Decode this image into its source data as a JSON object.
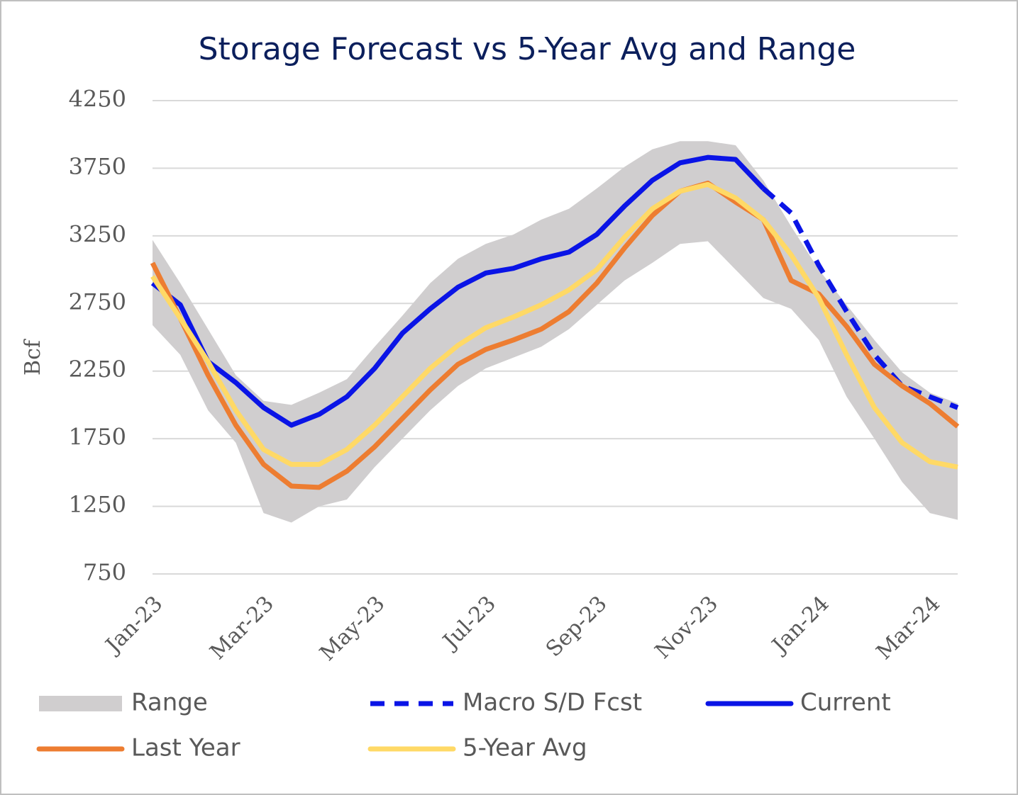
{
  "chart_data": {
    "type": "line",
    "title": "Storage Forecast vs 5-Year Avg and Range",
    "y_label": "Bcf",
    "categories": [
      "Jan-23",
      null,
      null,
      null,
      "Mar-23",
      null,
      null,
      null,
      "May-23",
      null,
      null,
      null,
      "Jul-23",
      null,
      null,
      null,
      "Sep-23",
      null,
      null,
      null,
      "Nov-23",
      null,
      null,
      null,
      "Jan-24",
      null,
      null,
      null,
      "Mar-24",
      null
    ],
    "ylim": [
      750,
      4250
    ],
    "yticks": [
      750,
      1250,
      1750,
      2250,
      2750,
      3250,
      3750,
      4250
    ],
    "grid": true,
    "range": {
      "name": "Range",
      "color": "#d0cecf",
      "upper": [
        3220,
        2900,
        2560,
        2220,
        2030,
        2000,
        2090,
        2190,
        2430,
        2660,
        2900,
        3080,
        3190,
        3260,
        3370,
        3450,
        3600,
        3760,
        3890,
        3950,
        3950,
        3920,
        3660,
        3320,
        3000,
        2740,
        2480,
        2240,
        2090,
        2010
      ],
      "lower": [
        2590,
        2370,
        1960,
        1720,
        1200,
        1130,
        1250,
        1300,
        1540,
        1750,
        1960,
        2140,
        2270,
        2350,
        2430,
        2560,
        2740,
        2920,
        3050,
        3190,
        3210,
        3000,
        2790,
        2710,
        2480,
        2060,
        1750,
        1430,
        1200,
        1150
      ]
    },
    "series": [
      {
        "name": "Macro S/D Fcst",
        "color": "#0a14e6",
        "dashed": true,
        "values": [
          null,
          null,
          null,
          null,
          null,
          null,
          null,
          null,
          null,
          null,
          null,
          null,
          null,
          null,
          null,
          null,
          null,
          null,
          null,
          null,
          null,
          null,
          3600,
          3420,
          3030,
          2690,
          2370,
          2140,
          2060,
          1980
        ]
      },
      {
        "name": "Current",
        "color": "#0a14e6",
        "dashed": false,
        "values": [
          2900,
          2740,
          2320,
          2165,
          1980,
          1850,
          1930,
          2060,
          2270,
          2530,
          2710,
          2870,
          2975,
          3010,
          3080,
          3130,
          3260,
          3470,
          3660,
          3790,
          3830,
          3815,
          3600,
          null,
          null,
          null,
          null,
          null,
          null,
          null
        ]
      },
      {
        "name": "Last Year",
        "color": "#ed7d31",
        "dashed": false,
        "values": [
          3050,
          2640,
          2220,
          1850,
          1560,
          1400,
          1390,
          1510,
          1690,
          1900,
          2110,
          2300,
          2410,
          2480,
          2560,
          2690,
          2900,
          3160,
          3400,
          3580,
          3640,
          3500,
          3370,
          2920,
          2820,
          2580,
          2300,
          2140,
          2010,
          1840
        ]
      },
      {
        "name": "5-Year Avg",
        "color": "#ffd966",
        "dashed": false,
        "values": [
          2950,
          2640,
          2320,
          1960,
          1670,
          1560,
          1560,
          1670,
          1850,
          2060,
          2270,
          2440,
          2570,
          2650,
          2740,
          2850,
          3000,
          3240,
          3450,
          3580,
          3630,
          3530,
          3370,
          3110,
          2790,
          2370,
          1980,
          1720,
          1580,
          1540
        ]
      }
    ]
  }
}
